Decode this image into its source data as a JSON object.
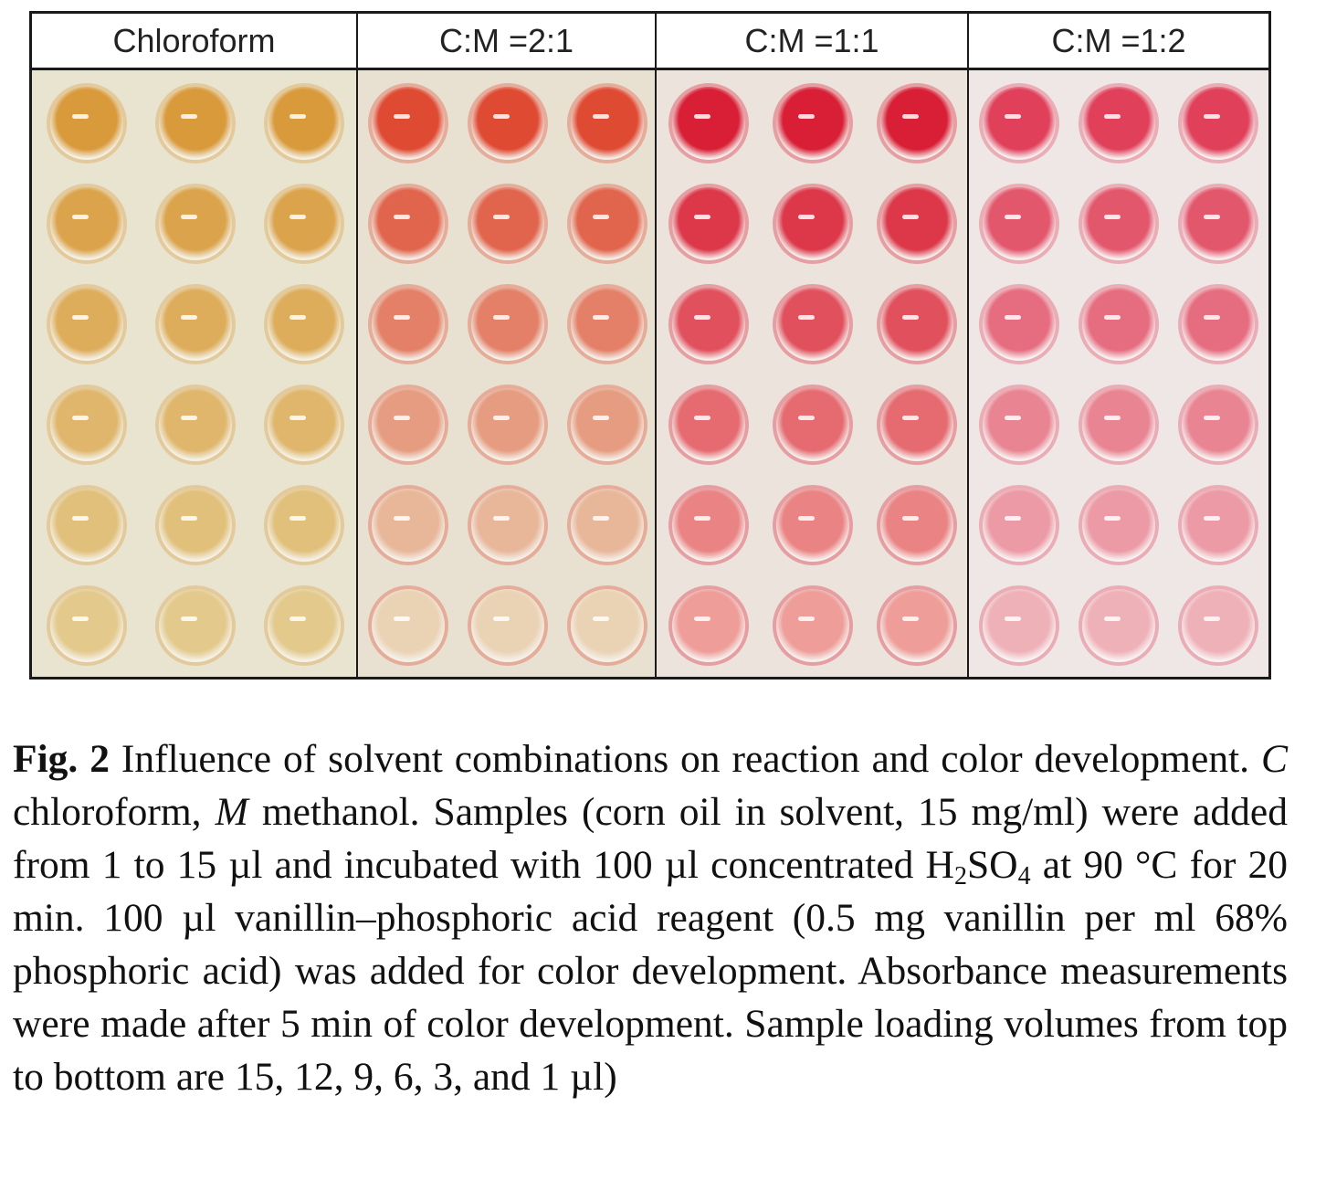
{
  "figure": {
    "headers": [
      "Chloroform",
      "C:M =2:1",
      "C:M =1:1",
      "C:M =1:2"
    ],
    "plate": {
      "rows": 6,
      "wells_per_panel": 3,
      "panel_colors": [
        {
          "bg": "#e9e4cf",
          "top": "#d99a3c",
          "bottom": "#e3c98c"
        },
        {
          "bg": "#e8e1d2",
          "top": "#df4a33",
          "bottom": "#ead2b4"
        },
        {
          "bg": "#ece3dd",
          "top": "#d81f35",
          "bottom": "#ee9d98"
        },
        {
          "bg": "#efe7e6",
          "top": "#e0405a",
          "bottom": "#efb1b8"
        }
      ]
    }
  },
  "caption": {
    "label": "Fig. 2",
    "t1": " Influence of solvent combinations on reaction and color development. ",
    "c": "C",
    "t2": " chloroform, ",
    "m": "M",
    "t3": " methanol. Samples (corn oil in solvent, 15 mg/ml) were added from 1 to 15 µl and incubated with 100 µl concentrated H",
    "sub1": "2",
    "t4": "SO",
    "sub2": "4",
    "t5": " at 90 °C for 20 min. 100 µl vanillin–phosphoric acid reagent (0.5 mg vanillin per ml 68% phosphoric acid) was added for color development. Absorbance measurements were made after 5 min of color development. Sample loading volumes from top to bottom are 15, 12, 9, 6, 3, and 1 µl)"
  }
}
